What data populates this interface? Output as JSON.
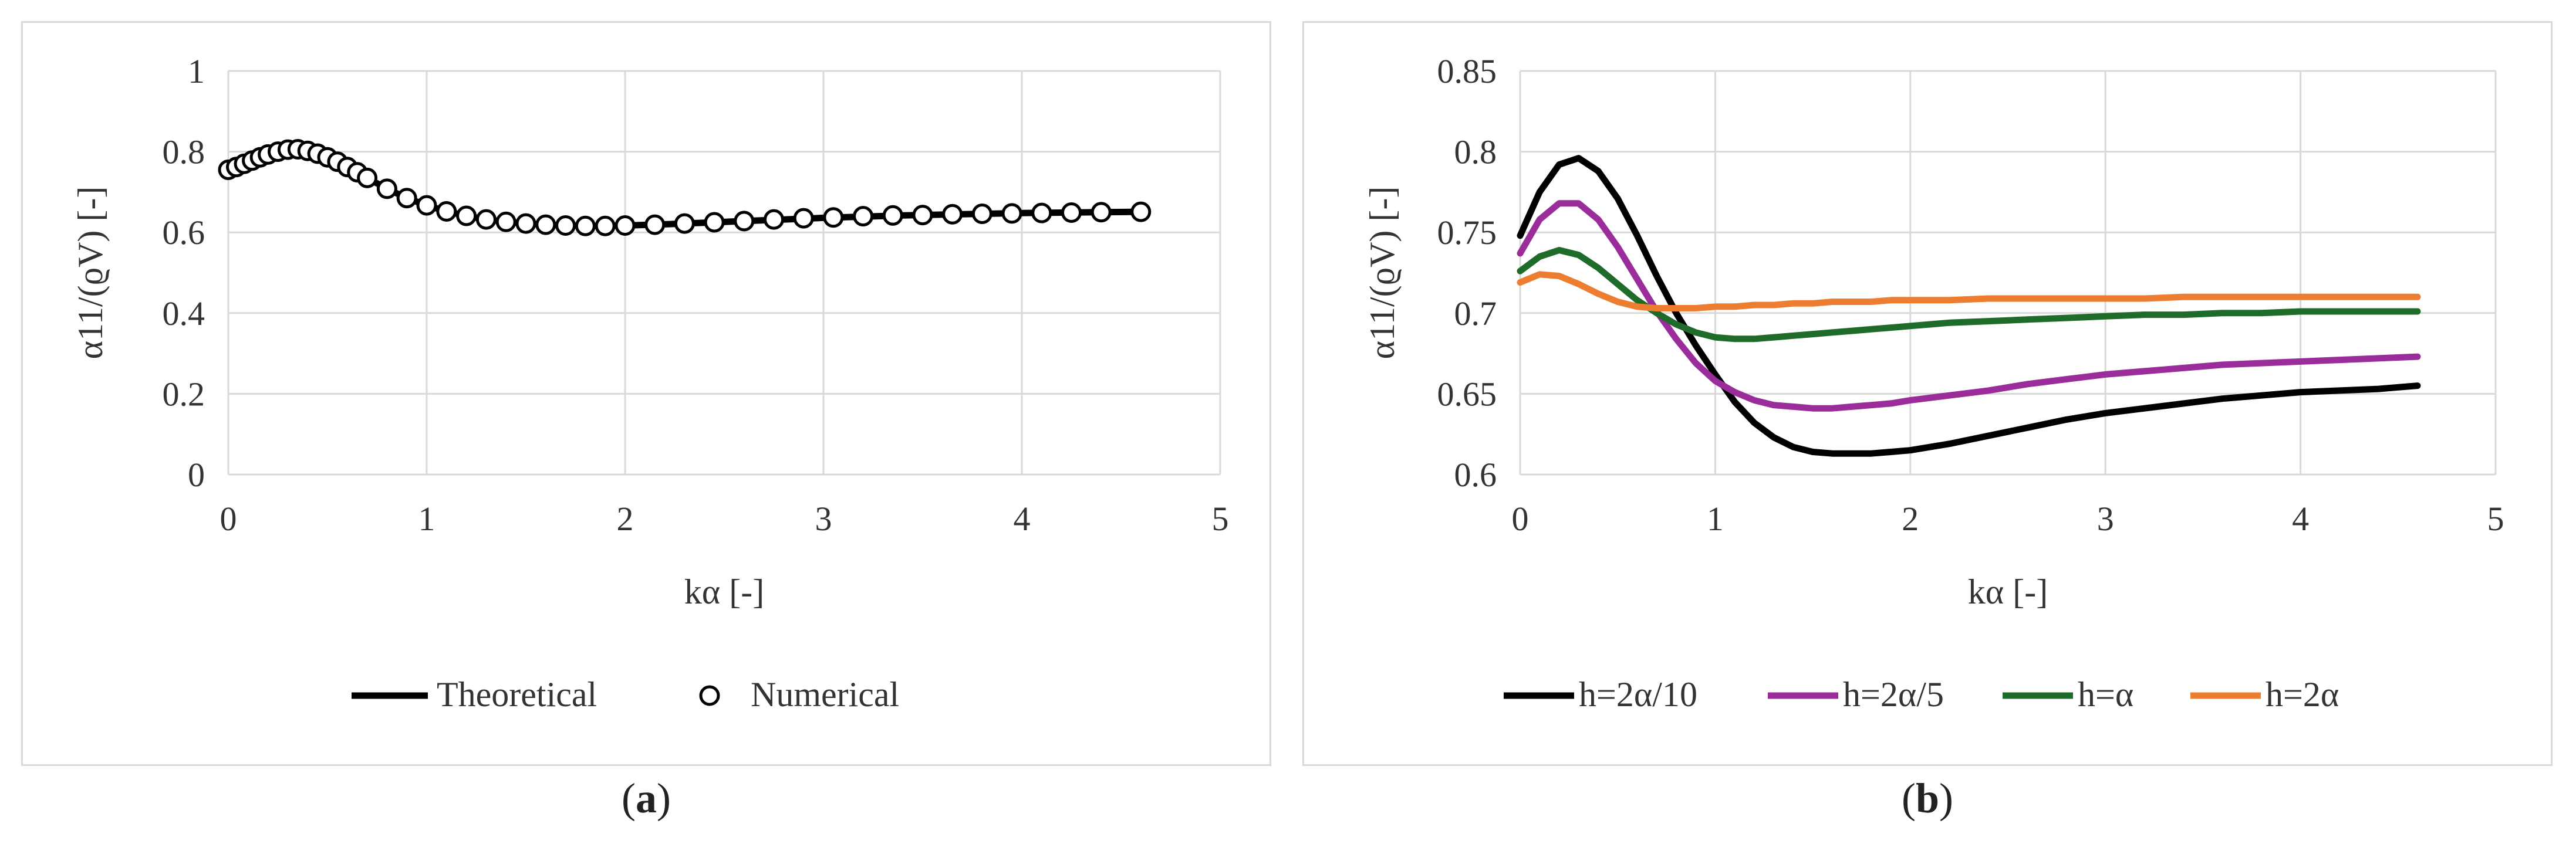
{
  "colors": {
    "grid": "#d9d9d9",
    "theoretical": "#000000",
    "h_2a_10": "#000000",
    "h_2a_5": "#9b2d9b",
    "h_a": "#1f6b2a",
    "h_2a": "#ed7d31"
  },
  "captions": {
    "a": {
      "open": "(",
      "letter": "a",
      "close": ")"
    },
    "b": {
      "open": "(",
      "letter": "b",
      "close": ")"
    }
  },
  "chart_data": [
    {
      "id": "a",
      "type": "line",
      "title": "",
      "xlabel": "kα [-]",
      "ylabel": "α11/(ϱV) [-]",
      "xlim": [
        0,
        5
      ],
      "ylim": [
        0,
        1
      ],
      "xticks": [
        0,
        1,
        2,
        3,
        4,
        5
      ],
      "xtick_labels": [
        "0",
        "1",
        "2",
        "3",
        "4",
        "5"
      ],
      "yticks": [
        0,
        0.2,
        0.4,
        0.6,
        0.8,
        1
      ],
      "ytick_labels": [
        "0",
        "0.2",
        "0.4",
        "0.6",
        "0.8",
        "1"
      ],
      "grid": true,
      "legend_position": "bottom",
      "series": [
        {
          "name": "Theoretical",
          "style": "line",
          "x": [
            0,
            0.1,
            0.2,
            0.3,
            0.35,
            0.4,
            0.5,
            0.6,
            0.7,
            0.8,
            0.9,
            1.0,
            1.1,
            1.2,
            1.3,
            1.4,
            1.5,
            1.6,
            1.7,
            1.8,
            1.9,
            2.0,
            2.2,
            2.4,
            2.6,
            2.8,
            3.0,
            3.2,
            3.4,
            3.6,
            3.8,
            4.0,
            4.2,
            4.4,
            4.6
          ],
          "y": [
            0.755,
            0.775,
            0.795,
            0.806,
            0.806,
            0.8,
            0.785,
            0.762,
            0.735,
            0.708,
            0.685,
            0.667,
            0.652,
            0.641,
            0.632,
            0.626,
            0.622,
            0.619,
            0.617,
            0.616,
            0.616,
            0.617,
            0.62,
            0.624,
            0.628,
            0.632,
            0.636,
            0.639,
            0.642,
            0.644,
            0.646,
            0.648,
            0.649,
            0.65,
            0.651
          ]
        },
        {
          "name": "Numerical",
          "style": "markers",
          "x": [
            0,
            0.04,
            0.08,
            0.12,
            0.16,
            0.2,
            0.25,
            0.3,
            0.35,
            0.4,
            0.45,
            0.5,
            0.55,
            0.6,
            0.65,
            0.7,
            0.8,
            0.9,
            1.0,
            1.1,
            1.2,
            1.3,
            1.4,
            1.5,
            1.6,
            1.7,
            1.8,
            1.9,
            2.0,
            2.15,
            2.3,
            2.45,
            2.6,
            2.75,
            2.9,
            3.05,
            3.2,
            3.35,
            3.5,
            3.65,
            3.8,
            3.95,
            4.1,
            4.25,
            4.4,
            4.6
          ],
          "y": [
            0.755,
            0.762,
            0.77,
            0.778,
            0.786,
            0.793,
            0.8,
            0.805,
            0.806,
            0.802,
            0.795,
            0.786,
            0.775,
            0.762,
            0.749,
            0.735,
            0.708,
            0.685,
            0.667,
            0.652,
            0.641,
            0.632,
            0.626,
            0.622,
            0.619,
            0.617,
            0.616,
            0.616,
            0.617,
            0.619,
            0.622,
            0.625,
            0.628,
            0.632,
            0.635,
            0.637,
            0.64,
            0.642,
            0.643,
            0.645,
            0.646,
            0.647,
            0.648,
            0.649,
            0.65,
            0.651
          ]
        }
      ]
    },
    {
      "id": "b",
      "type": "line",
      "title": "",
      "xlabel": "kα [-]",
      "ylabel": "α11/(ϱV) [-]",
      "xlim": [
        0,
        5
      ],
      "ylim": [
        0.6,
        0.85
      ],
      "xticks": [
        0,
        1,
        2,
        3,
        4,
        5
      ],
      "xtick_labels": [
        "0",
        "1",
        "2",
        "3",
        "4",
        "5"
      ],
      "yticks": [
        0.6,
        0.65,
        0.7,
        0.75,
        0.8,
        0.85
      ],
      "ytick_labels": [
        "0.6",
        "0.65",
        "0.7",
        "0.75",
        "0.8",
        "0.85"
      ],
      "grid": true,
      "legend_position": "bottom",
      "series": [
        {
          "name": "h=2α/10",
          "color_key": "h_2a_10",
          "x": [
            0,
            0.1,
            0.2,
            0.3,
            0.4,
            0.5,
            0.6,
            0.7,
            0.8,
            0.9,
            1.0,
            1.1,
            1.2,
            1.3,
            1.4,
            1.5,
            1.6,
            1.7,
            1.8,
            1.9,
            2.0,
            2.2,
            2.4,
            2.6,
            2.8,
            3.0,
            3.2,
            3.4,
            3.6,
            3.8,
            4.0,
            4.2,
            4.4,
            4.6
          ],
          "y": [
            0.748,
            0.775,
            0.792,
            0.796,
            0.788,
            0.771,
            0.748,
            0.723,
            0.7,
            0.68,
            0.662,
            0.645,
            0.632,
            0.623,
            0.617,
            0.614,
            0.613,
            0.613,
            0.613,
            0.614,
            0.615,
            0.619,
            0.624,
            0.629,
            0.634,
            0.638,
            0.641,
            0.644,
            0.647,
            0.649,
            0.651,
            0.652,
            0.653,
            0.655
          ]
        },
        {
          "name": "h=2α/5",
          "color_key": "h_2a_5",
          "x": [
            0,
            0.1,
            0.2,
            0.3,
            0.4,
            0.5,
            0.6,
            0.7,
            0.8,
            0.9,
            1.0,
            1.1,
            1.2,
            1.3,
            1.4,
            1.5,
            1.6,
            1.7,
            1.8,
            1.9,
            2.0,
            2.2,
            2.4,
            2.6,
            2.8,
            3.0,
            3.2,
            3.4,
            3.6,
            3.8,
            4.0,
            4.2,
            4.4,
            4.6
          ],
          "y": [
            0.737,
            0.758,
            0.768,
            0.768,
            0.758,
            0.741,
            0.721,
            0.701,
            0.684,
            0.669,
            0.658,
            0.651,
            0.646,
            0.643,
            0.642,
            0.641,
            0.641,
            0.642,
            0.643,
            0.644,
            0.646,
            0.649,
            0.652,
            0.656,
            0.659,
            0.662,
            0.664,
            0.666,
            0.668,
            0.669,
            0.67,
            0.671,
            0.672,
            0.673
          ]
        },
        {
          "name": "h=α",
          "color_key": "h_a",
          "x": [
            0,
            0.1,
            0.2,
            0.3,
            0.4,
            0.5,
            0.6,
            0.7,
            0.8,
            0.9,
            1.0,
            1.1,
            1.2,
            1.3,
            1.4,
            1.5,
            1.6,
            1.7,
            1.8,
            1.9,
            2.0,
            2.2,
            2.4,
            2.6,
            2.8,
            3.0,
            3.2,
            3.4,
            3.6,
            3.8,
            4.0,
            4.2,
            4.4,
            4.6
          ],
          "y": [
            0.726,
            0.735,
            0.739,
            0.736,
            0.728,
            0.718,
            0.708,
            0.7,
            0.693,
            0.688,
            0.685,
            0.684,
            0.684,
            0.685,
            0.686,
            0.687,
            0.688,
            0.689,
            0.69,
            0.691,
            0.692,
            0.694,
            0.695,
            0.696,
            0.697,
            0.698,
            0.699,
            0.699,
            0.7,
            0.7,
            0.701,
            0.701,
            0.701,
            0.701
          ]
        },
        {
          "name": "h=2α",
          "color_key": "h_2a",
          "x": [
            0,
            0.1,
            0.2,
            0.3,
            0.4,
            0.5,
            0.6,
            0.7,
            0.8,
            0.9,
            1.0,
            1.1,
            1.2,
            1.3,
            1.4,
            1.5,
            1.6,
            1.7,
            1.8,
            1.9,
            2.0,
            2.2,
            2.4,
            2.6,
            2.8,
            3.0,
            3.2,
            3.4,
            3.6,
            3.8,
            4.0,
            4.2,
            4.4,
            4.6
          ],
          "y": [
            0.719,
            0.724,
            0.723,
            0.718,
            0.712,
            0.707,
            0.704,
            0.703,
            0.703,
            0.703,
            0.704,
            0.704,
            0.705,
            0.705,
            0.706,
            0.706,
            0.707,
            0.707,
            0.707,
            0.708,
            0.708,
            0.708,
            0.709,
            0.709,
            0.709,
            0.709,
            0.709,
            0.71,
            0.71,
            0.71,
            0.71,
            0.71,
            0.71,
            0.71
          ]
        }
      ]
    }
  ]
}
